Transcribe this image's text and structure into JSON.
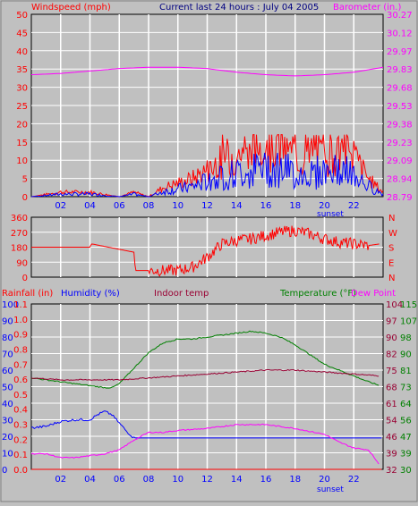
{
  "colors": {
    "background": "#c0c0c0",
    "grid": "#ffffff",
    "wind": "#ff0000",
    "gust_low": "#0000ff",
    "barometer": "#ff00ff",
    "direction": "#ff0000",
    "rainfall": "#ff0000",
    "humidity": "#0000ff",
    "indoor": "#990033",
    "temperature": "#008000",
    "dewpoint": "#ff00ff",
    "header_center": "#000080"
  },
  "header": {
    "left": "Windspeed (mph)",
    "center": "Current last 24 hours : July 04 2005",
    "right": "Barometer (in.)"
  },
  "panel1_right_ticks": [
    "30.27",
    "30.12",
    "29.97",
    "29.83",
    "29.68",
    "29.53",
    "29.38",
    "29.23",
    "29.09",
    "28.94",
    "28.79"
  ],
  "panel2_right_ticks": [
    "N",
    "W",
    "S",
    "E",
    "N"
  ],
  "panel3_header": {
    "rainfall": "Rainfall (in)",
    "humidity": "Humidity (%)",
    "indoor": "Indoor temp",
    "temperature": "Temperature (°F)",
    "dewpoint": "Dew Point"
  },
  "sunset_label": "sunset",
  "chart_data": [
    {
      "type": "line",
      "title": "Current last 24 hours : July 04 2005",
      "x_ticks": [
        "02",
        "04",
        "06",
        "08",
        "10",
        "12",
        "14",
        "16",
        "18",
        "20",
        "22"
      ],
      "y_ticks": [
        "0",
        "5",
        "10",
        "15",
        "20",
        "25",
        "30",
        "35",
        "40",
        "45",
        "50"
      ],
      "ylim": [
        0,
        50
      ],
      "y2_ticks": [
        "28.79",
        "28.94",
        "29.09",
        "29.23",
        "29.38",
        "29.53",
        "29.68",
        "29.83",
        "29.97",
        "30.12",
        "30.27"
      ],
      "y2lim": [
        28.79,
        30.27
      ],
      "series": [
        {
          "name": "Windspeed (mph)",
          "x": [
            0,
            2,
            4,
            6,
            7,
            8,
            9,
            10,
            11,
            12,
            13,
            14,
            15,
            16,
            17,
            18,
            19,
            20,
            21,
            22,
            23,
            24
          ],
          "values": [
            0,
            1,
            1,
            0,
            1,
            0,
            2,
            3,
            4,
            6,
            8,
            9,
            10,
            12,
            11,
            9,
            9,
            10,
            10,
            9,
            4,
            1
          ]
        },
        {
          "name": "Barometer (in.)",
          "x": [
            0,
            2,
            4,
            6,
            8,
            10,
            12,
            14,
            16,
            18,
            20,
            22,
            24
          ],
          "values": [
            29.78,
            29.79,
            29.81,
            29.83,
            29.84,
            29.84,
            29.83,
            29.8,
            29.78,
            29.77,
            29.78,
            29.8,
            29.84
          ]
        }
      ]
    },
    {
      "type": "line",
      "x_ticks": [
        "02",
        "04",
        "06",
        "08",
        "10",
        "12",
        "14",
        "16",
        "18",
        "20",
        "22"
      ],
      "y_ticks": [
        "0",
        "90",
        "180",
        "270",
        "360"
      ],
      "ylim": [
        0,
        360
      ],
      "series": [
        {
          "name": "Wind direction",
          "x": [
            0,
            4,
            4.1,
            7,
            7.1,
            10,
            11,
            12,
            13,
            14,
            15,
            16,
            17,
            18,
            19,
            20,
            21,
            22,
            23,
            23.8
          ],
          "values": [
            180,
            180,
            200,
            150,
            40,
            40,
            60,
            120,
            200,
            220,
            230,
            250,
            270,
            280,
            260,
            230,
            210,
            200,
            190,
            200
          ]
        }
      ]
    },
    {
      "type": "line",
      "x_ticks": [
        "02",
        "04",
        "06",
        "08",
        "10",
        "12",
        "14",
        "16",
        "18",
        "20",
        "22"
      ],
      "y_ticks_left": [
        "0",
        "10",
        "20",
        "30",
        "40",
        "50",
        "60",
        "70",
        "80",
        "90",
        "100"
      ],
      "y_ticks_rain": [
        "0.0",
        "0.1",
        "0.2",
        "0.3",
        "0.4",
        "0.5",
        "0.6",
        "0.7",
        "0.8",
        "0.9",
        "1.0",
        "1.1"
      ],
      "y_ticks_temp": [
        "30",
        "39",
        "47",
        "56",
        "64",
        "73",
        "81",
        "90",
        "98",
        "107",
        "115"
      ],
      "y_ticks_indoor": [
        "32",
        "39",
        "46",
        "54",
        "61",
        "68",
        "75",
        "82",
        "90",
        "97",
        "104"
      ],
      "ylim_humidity": [
        0,
        100
      ],
      "ylim_temp": [
        30,
        115
      ],
      "series": [
        {
          "name": "Humidity (%)",
          "x": [
            0,
            1,
            2,
            3,
            4,
            4.5,
            5,
            5.5,
            6,
            6.5,
            7,
            7.5,
            24
          ],
          "values": [
            25,
            26,
            29,
            30,
            30,
            33,
            35,
            33,
            28,
            23,
            19,
            19,
            19
          ]
        },
        {
          "name": "Temperature (°F)",
          "x": [
            0,
            1,
            2,
            3,
            4,
            5,
            5.5,
            6,
            7,
            8,
            9,
            10,
            11,
            12,
            13,
            14,
            15,
            16,
            17,
            18,
            19,
            20,
            21,
            22,
            23,
            23.8
          ],
          "values": [
            77,
            76,
            75,
            74,
            73,
            72,
            72,
            74,
            82,
            90,
            95,
            97,
            97,
            98,
            99,
            100,
            101,
            100,
            98,
            94,
            89,
            84,
            81,
            78,
            75,
            73
          ]
        },
        {
          "name": "Indoor temp",
          "x": [
            0,
            2,
            4,
            6,
            8,
            10,
            12,
            14,
            16,
            18,
            20,
            22,
            23.8
          ],
          "values": [
            77,
            76,
            76,
            76,
            77,
            78,
            79,
            80,
            81,
            81,
            80,
            79,
            78
          ]
        },
        {
          "name": "Dew Point",
          "x": [
            0,
            1,
            2,
            3,
            4,
            5,
            6,
            7,
            8,
            9,
            10,
            12,
            14,
            16,
            18,
            20,
            21,
            22,
            23,
            23.8
          ],
          "values": [
            38,
            38,
            36,
            36,
            37,
            38,
            40,
            45,
            49,
            49,
            50,
            51,
            53,
            53,
            51,
            48,
            44,
            41,
            40,
            32
          ]
        },
        {
          "name": "Rainfall (in)",
          "x": [
            0,
            24
          ],
          "values": [
            0.0,
            0.0
          ]
        }
      ]
    }
  ]
}
